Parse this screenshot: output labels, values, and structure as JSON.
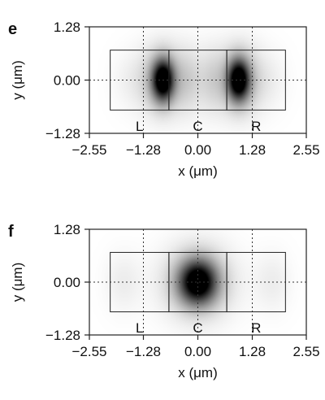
{
  "panels": [
    {
      "letter": "e",
      "xlabel": "x (μm)",
      "ylabel": "y (μm)",
      "xlim": [
        -2.55,
        2.55
      ],
      "ylim": [
        -1.28,
        1.28
      ],
      "xticks": [
        {
          "value": -2.55,
          "label": "−2.55"
        },
        {
          "value": -1.28,
          "label": "−1.28"
        },
        {
          "value": 0,
          "label": "0.00"
        },
        {
          "value": 1.28,
          "label": "1.28"
        },
        {
          "value": 2.55,
          "label": "2.55"
        }
      ],
      "yticks": [
        {
          "value": 1.28,
          "label": "1.28"
        },
        {
          "value": 0,
          "label": "0.00"
        },
        {
          "value": -1.28,
          "label": "−1.28"
        }
      ],
      "gridlines": {
        "x": [
          -1.28,
          0,
          1.28
        ],
        "y": [
          0
        ]
      },
      "waveguides": [
        {
          "label": "L",
          "x0": -2.06,
          "x1": -0.68,
          "y0": -0.72,
          "y1": 0.72
        },
        {
          "label": "C",
          "x0": -0.68,
          "x1": 0.68,
          "y0": -0.72,
          "y1": 0.72
        },
        {
          "label": "R",
          "x0": 0.68,
          "x1": 2.06,
          "y0": -0.72,
          "y1": 0.72
        }
      ],
      "intensity_peaks": [
        {
          "x": -0.82,
          "y": 0,
          "sx": 0.17,
          "sy": 0.33,
          "amp": 1.0
        },
        {
          "x": 0.96,
          "y": 0,
          "sx": 0.17,
          "sy": 0.33,
          "amp": 1.0
        },
        {
          "x": -0.82,
          "y": 0,
          "sx": 0.35,
          "sy": 0.55,
          "amp": 0.35
        },
        {
          "x": 0.96,
          "y": 0,
          "sx": 0.35,
          "sy": 0.55,
          "amp": 0.35
        },
        {
          "x": -0.2,
          "y": 0,
          "sx": 0.22,
          "sy": 0.55,
          "amp": 0.13
        },
        {
          "x": 0.3,
          "y": 0,
          "sx": 0.22,
          "sy": 0.55,
          "amp": 0.13
        },
        {
          "x": -1.6,
          "y": 0,
          "sx": 0.3,
          "sy": 0.5,
          "amp": 0.05
        },
        {
          "x": 1.7,
          "y": 0,
          "sx": 0.3,
          "sy": 0.5,
          "amp": 0.05
        }
      ]
    },
    {
      "letter": "f",
      "xlabel": "x (μm)",
      "ylabel": "y (μm)",
      "xlim": [
        -2.55,
        2.55
      ],
      "ylim": [
        -1.28,
        1.28
      ],
      "xticks": [
        {
          "value": -2.55,
          "label": "−2.55"
        },
        {
          "value": -1.28,
          "label": "−1.28"
        },
        {
          "value": 0,
          "label": "0.00"
        },
        {
          "value": 1.28,
          "label": "1.28"
        },
        {
          "value": 2.55,
          "label": "2.55"
        }
      ],
      "yticks": [
        {
          "value": 1.28,
          "label": "1.28"
        },
        {
          "value": 0,
          "label": "0.00"
        },
        {
          "value": -1.28,
          "label": "−1.28"
        }
      ],
      "gridlines": {
        "x": [
          -1.28,
          0,
          1.28
        ],
        "y": [
          0
        ]
      },
      "waveguides": [
        {
          "label": "L",
          "x0": -2.06,
          "x1": -0.68,
          "y0": -0.72,
          "y1": 0.72
        },
        {
          "label": "C",
          "x0": -0.68,
          "x1": 0.68,
          "y0": -0.72,
          "y1": 0.72
        },
        {
          "label": "R",
          "x0": 0.68,
          "x1": 2.06,
          "y0": -0.72,
          "y1": 0.72
        }
      ],
      "intensity_peaks": [
        {
          "x": 0,
          "y": 0,
          "sx": 0.3,
          "sy": 0.36,
          "amp": 1.0
        },
        {
          "x": 0,
          "y": 0,
          "sx": 0.55,
          "sy": 0.6,
          "amp": 0.3
        },
        {
          "x": -1.75,
          "y": 0,
          "sx": 0.3,
          "sy": 0.5,
          "amp": 0.07
        },
        {
          "x": 1.75,
          "y": 0,
          "sx": 0.3,
          "sy": 0.5,
          "amp": 0.07
        }
      ]
    }
  ]
}
